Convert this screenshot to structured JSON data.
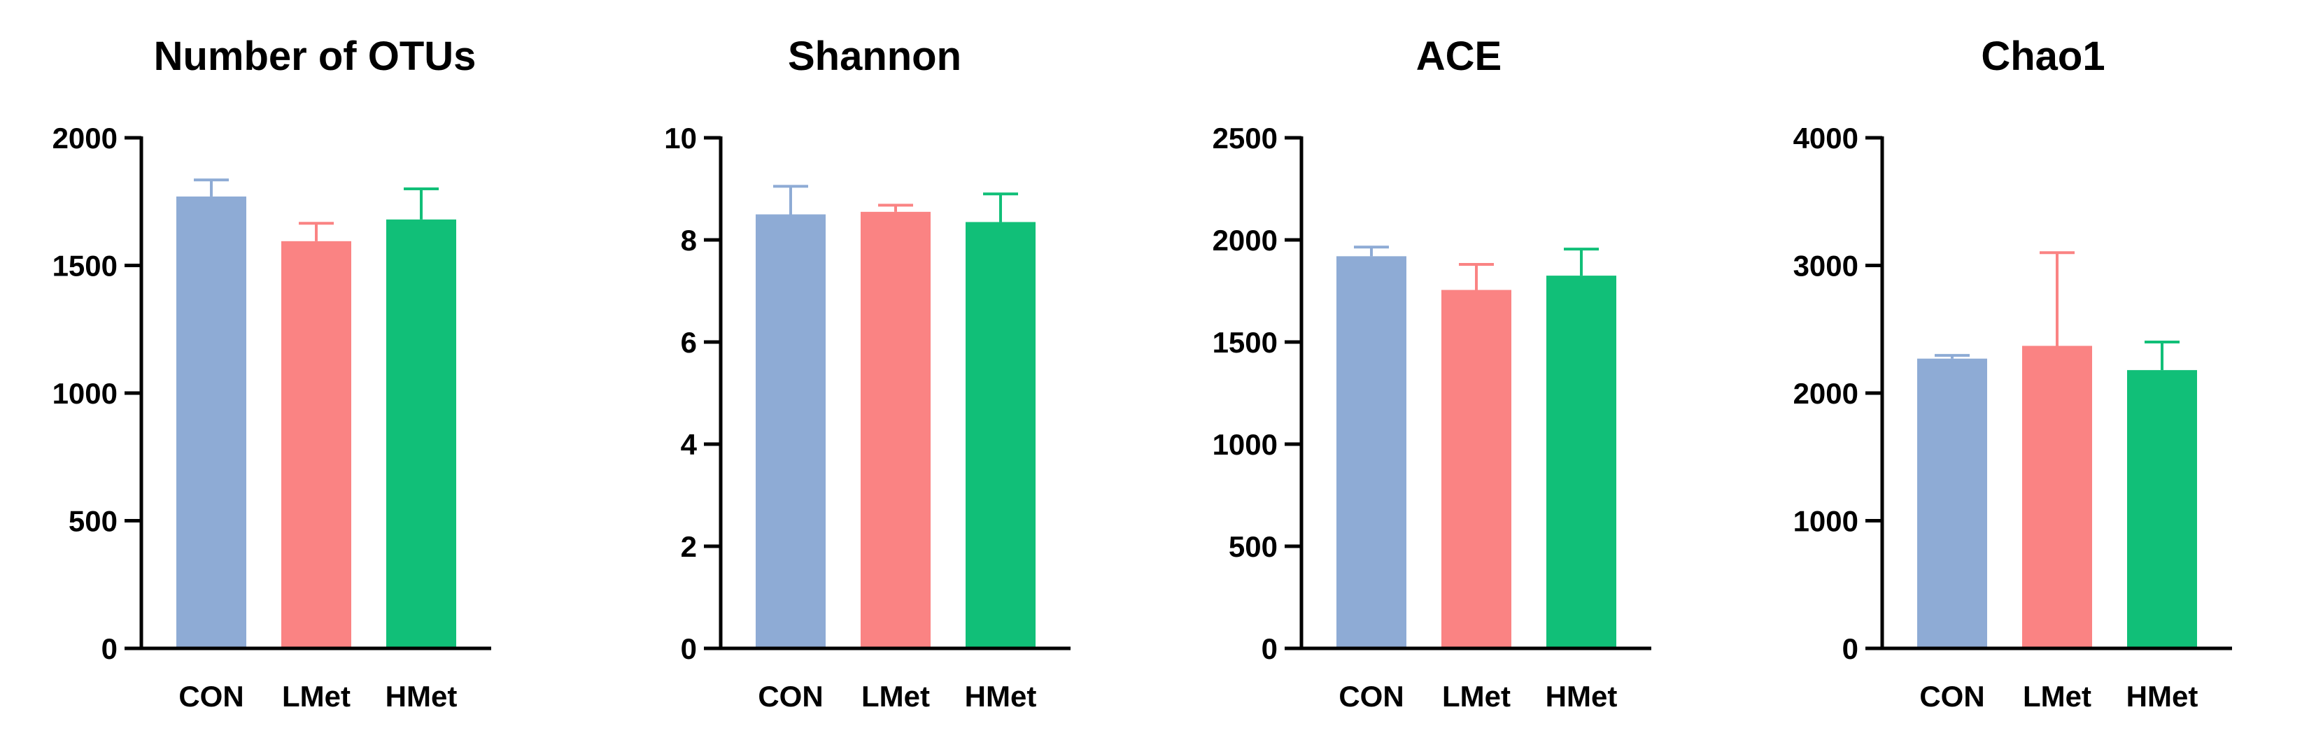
{
  "chart_data": [
    {
      "type": "bar",
      "title": "Number of OTUs",
      "categories": [
        "CON",
        "LMet",
        "HMet"
      ],
      "values": [
        1770,
        1595,
        1680
      ],
      "errors": [
        65,
        70,
        120
      ],
      "ylim": [
        0,
        2000
      ],
      "yticks": [
        0,
        500,
        1000,
        1500,
        2000
      ],
      "colors": [
        "#8EABD5",
        "#FA8383",
        "#11BF78"
      ],
      "error_colors": [
        "#8EABD5",
        "#FA8383",
        "#11BF78"
      ]
    },
    {
      "type": "bar",
      "title": "Shannon",
      "categories": [
        "CON",
        "LMet",
        "HMet"
      ],
      "values": [
        8.5,
        8.55,
        8.35
      ],
      "errors": [
        0.55,
        0.13,
        0.55
      ],
      "ylim": [
        0,
        10
      ],
      "yticks": [
        0,
        2,
        4,
        6,
        8,
        10
      ],
      "colors": [
        "#8EABD5",
        "#FA8383",
        "#11BF78"
      ],
      "error_colors": [
        "#8EABD5",
        "#FA8383",
        "#11BF78"
      ]
    },
    {
      "type": "bar",
      "title": "ACE",
      "categories": [
        "CON",
        "LMet",
        "HMet"
      ],
      "values": [
        1920,
        1755,
        1825
      ],
      "errors": [
        45,
        125,
        130
      ],
      "ylim": [
        0,
        2500
      ],
      "yticks": [
        0,
        500,
        1000,
        1500,
        2000,
        2500
      ],
      "colors": [
        "#8EABD5",
        "#FA8383",
        "#11BF78"
      ],
      "error_colors": [
        "#8EABD5",
        "#FA8383",
        "#11BF78"
      ]
    },
    {
      "type": "bar",
      "title": "Chao1",
      "categories": [
        "CON",
        "LMet",
        "HMet"
      ],
      "values": [
        2270,
        2370,
        2180
      ],
      "errors": [
        25,
        730,
        220
      ],
      "ylim": [
        0,
        4000
      ],
      "yticks": [
        0,
        1000,
        2000,
        3000,
        4000
      ],
      "colors": [
        "#8EABD5",
        "#FA8383",
        "#11BF78"
      ],
      "error_colors": [
        "#8EABD5",
        "#FA8383",
        "#11BF78"
      ]
    }
  ]
}
